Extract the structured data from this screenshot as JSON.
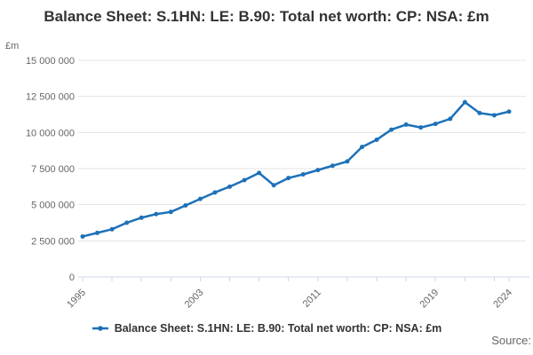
{
  "title": "Balance Sheet: S.1HN: LE: B.90: Total net worth: CP: NSA: £m",
  "y_unit_label": "£m",
  "legend": {
    "label": "Balance Sheet: S.1HN: LE: B.90: Total net worth: CP: NSA: £m"
  },
  "source_label": "Source:",
  "colors": {
    "series": "#1d70b8",
    "grid": "#e6e6e6",
    "axis": "#ccd6eb",
    "text_muted": "#666666",
    "text_title": "#333333"
  },
  "chart_data": {
    "type": "line",
    "title": "Balance Sheet: S.1HN: LE: B.90: Total net worth: CP: NSA: £m",
    "xlabel": "",
    "ylabel": "£m",
    "grid": true,
    "legend_position": "bottom",
    "ylim": [
      0,
      15000000
    ],
    "yticks": [
      0,
      2500000,
      5000000,
      7500000,
      10000000,
      12500000,
      15000000
    ],
    "ytick_labels": [
      "0",
      "2 500 000",
      "5 000 000",
      "7 500 000",
      "10 000 000",
      "12 500 000",
      "15 000 000"
    ],
    "xticks": [
      1995,
      1997,
      1999,
      2001,
      2003,
      2005,
      2007,
      2009,
      2011,
      2013,
      2015,
      2017,
      2019,
      2021,
      2023,
      2024
    ],
    "xtick_labeled": [
      1995,
      2003,
      2011,
      2019,
      2024
    ],
    "xlim": [
      1995,
      2024
    ],
    "x": [
      1995,
      1996,
      1997,
      1998,
      1999,
      2000,
      2001,
      2002,
      2003,
      2004,
      2005,
      2006,
      2007,
      2008,
      2009,
      2010,
      2011,
      2012,
      2013,
      2014,
      2015,
      2016,
      2017,
      2018,
      2019,
      2020,
      2021,
      2022,
      2023,
      2024
    ],
    "series": [
      {
        "name": "Balance Sheet: S.1HN: LE: B.90: Total net worth: CP: NSA: £m",
        "values": [
          2800000,
          3050000,
          3300000,
          3750000,
          4100000,
          4350000,
          4500000,
          4950000,
          5400000,
          5850000,
          6250000,
          6700000,
          7200000,
          6350000,
          6850000,
          7100000,
          7400000,
          7700000,
          8000000,
          9000000,
          9500000,
          10200000,
          10550000,
          10350000,
          10600000,
          10950000,
          12100000,
          11350000,
          11200000,
          11450000
        ]
      }
    ]
  }
}
